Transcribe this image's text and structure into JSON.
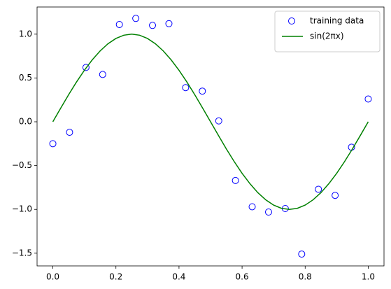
{
  "chart_data": {
    "type": "scatter",
    "xlim": [
      -0.05,
      1.05
    ],
    "ylim": [
      -1.645,
      1.31
    ],
    "xticks": [
      {
        "value": 0,
        "label": "0.0"
      },
      {
        "value": 0.2,
        "label": "0.2"
      },
      {
        "value": 0.4,
        "label": "0.4"
      },
      {
        "value": 0.6,
        "label": "0.6"
      },
      {
        "value": 0.8,
        "label": "0.8"
      },
      {
        "value": 1,
        "label": "1.0"
      }
    ],
    "yticks": [
      {
        "value": -1.5,
        "label": "−1.5"
      },
      {
        "value": -1,
        "label": "−1.0"
      },
      {
        "value": -0.5,
        "label": "−0.5"
      },
      {
        "value": 0,
        "label": "0.0"
      },
      {
        "value": 0.5,
        "label": "0.5"
      },
      {
        "value": 1,
        "label": "1.0"
      }
    ],
    "legend": "upper right",
    "series": [
      {
        "name": "training data",
        "type": "scatter",
        "color": "#0000ff",
        "x": [
          0,
          0.053,
          0.105,
          0.158,
          0.211,
          0.263,
          0.316,
          0.368,
          0.421,
          0.474,
          0.526,
          0.579,
          0.632,
          0.684,
          0.737,
          0.789,
          0.842,
          0.895,
          0.947,
          1
        ],
        "values": [
          -0.25,
          -0.12,
          0.62,
          0.54,
          1.11,
          1.18,
          1.1,
          1.12,
          0.39,
          0.35,
          0.01,
          -0.67,
          -0.97,
          -1.03,
          -0.99,
          -1.51,
          -0.77,
          -0.84,
          -0.29,
          0.26
        ]
      },
      {
        "name": "sin(2πx)",
        "type": "line",
        "color": "#008000",
        "x": [
          0,
          0.025,
          0.05,
          0.075,
          0.1,
          0.125,
          0.15,
          0.175,
          0.2,
          0.225,
          0.25,
          0.275,
          0.3,
          0.325,
          0.35,
          0.375,
          0.4,
          0.425,
          0.45,
          0.475,
          0.5,
          0.525,
          0.55,
          0.575,
          0.6,
          0.625,
          0.65,
          0.675,
          0.7,
          0.725,
          0.75,
          0.775,
          0.8,
          0.825,
          0.85,
          0.875,
          0.9,
          0.925,
          0.95,
          0.975,
          1
        ],
        "values": [
          0,
          0.156,
          0.309,
          0.454,
          0.588,
          0.707,
          0.809,
          0.891,
          0.951,
          0.988,
          1,
          0.988,
          0.951,
          0.891,
          0.809,
          0.707,
          0.588,
          0.454,
          0.309,
          0.156,
          0,
          -0.156,
          -0.309,
          -0.454,
          -0.588,
          -0.707,
          -0.809,
          -0.891,
          -0.951,
          -0.988,
          -1,
          -0.988,
          -0.951,
          -0.891,
          -0.809,
          -0.707,
          -0.588,
          -0.454,
          -0.309,
          -0.156,
          0
        ]
      }
    ]
  }
}
